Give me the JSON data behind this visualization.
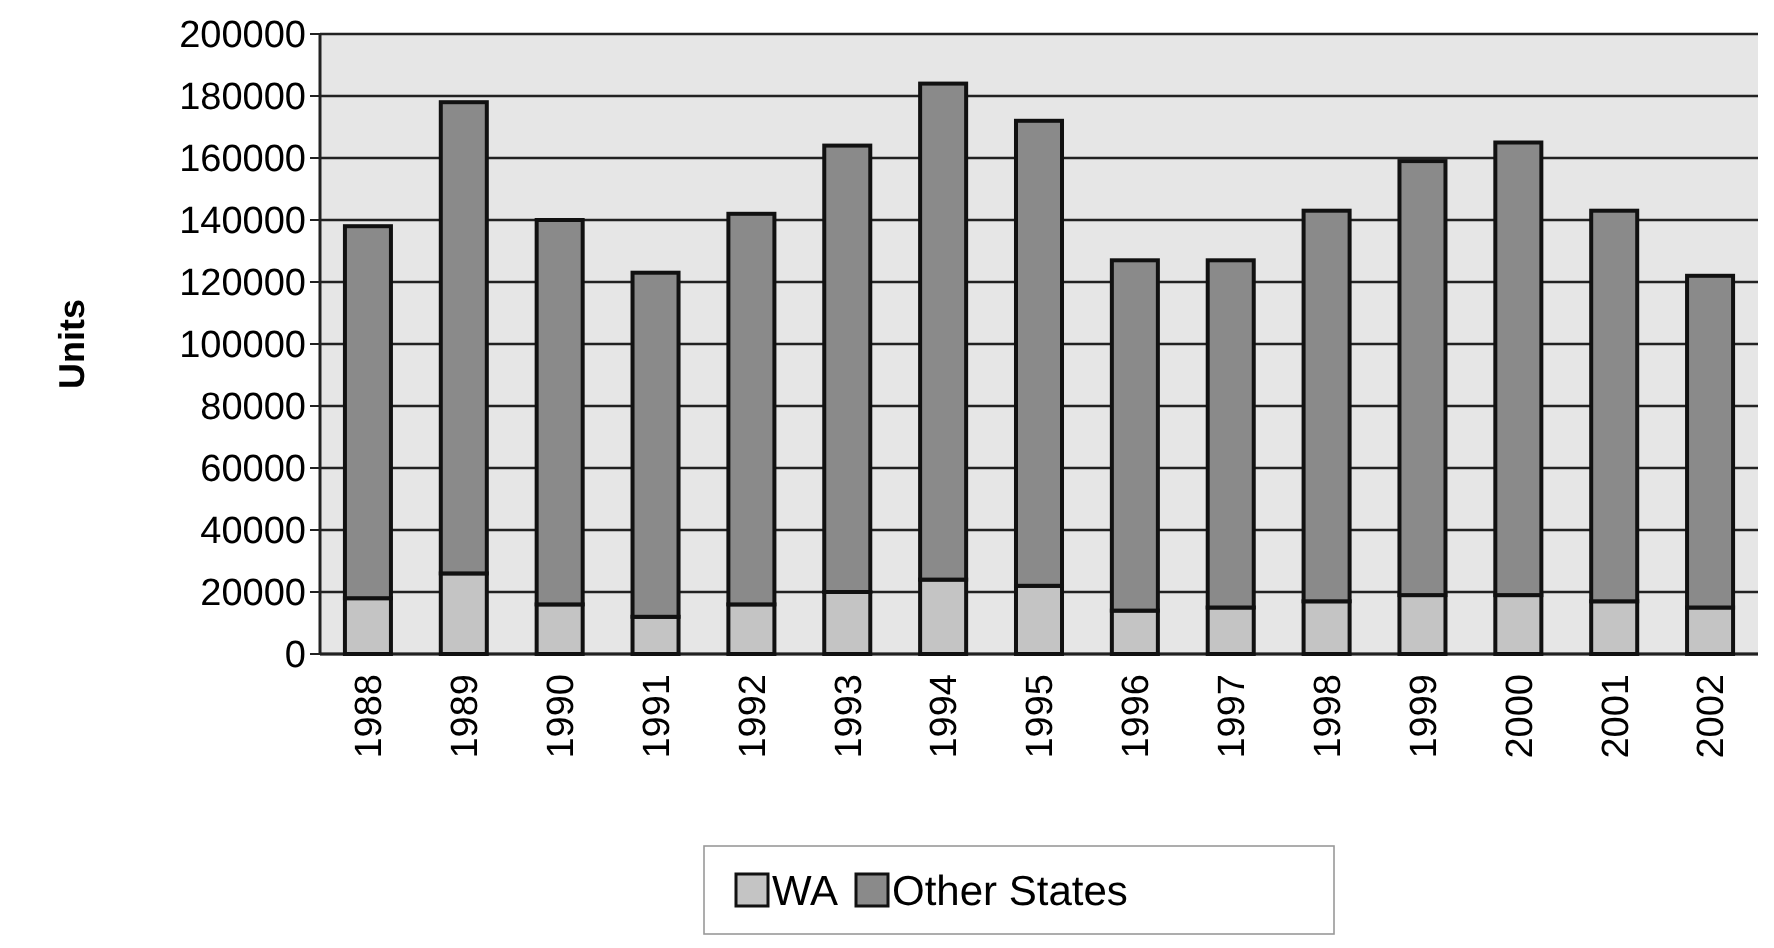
{
  "chart_data": {
    "type": "bar",
    "stacked": true,
    "ylabel": "Units",
    "categories": [
      "1988",
      "1989",
      "1990",
      "1991",
      "1992",
      "1993",
      "1994",
      "1995",
      "1996",
      "1997",
      "1998",
      "1999",
      "2000",
      "2001",
      "2002"
    ],
    "series": [
      {
        "name": "WA",
        "color": "#c4c4c4",
        "values": [
          18000,
          26000,
          16000,
          12000,
          16000,
          20000,
          24000,
          22000,
          14000,
          15000,
          17000,
          19000,
          19000,
          17000,
          15000
        ]
      },
      {
        "name": "Other States",
        "color": "#8a8a8a",
        "values": [
          120000,
          152000,
          124000,
          111000,
          126000,
          144000,
          160000,
          150000,
          113000,
          112000,
          126000,
          140000,
          146000,
          126000,
          107000
        ]
      }
    ],
    "ylim": [
      0,
      200000
    ],
    "yticks": [
      0,
      20000,
      40000,
      60000,
      80000,
      100000,
      120000,
      140000,
      160000,
      180000,
      200000
    ],
    "grid": "y",
    "legend": "bottom"
  }
}
